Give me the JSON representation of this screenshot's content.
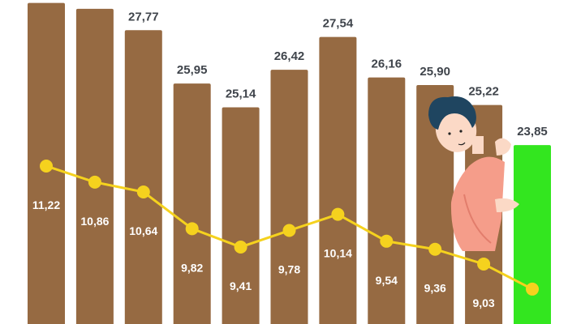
{
  "chart_data": {
    "type": "bar",
    "title": "",
    "xlabel": "",
    "ylabel": "",
    "grid": false,
    "categories": [
      "",
      "",
      "",
      "",
      "",
      "",
      "",
      "",
      "",
      "",
      ""
    ],
    "bars": {
      "values": [
        28.7,
        28.5,
        27.77,
        25.95,
        25.14,
        26.42,
        27.54,
        26.16,
        25.9,
        25.22,
        23.85
      ],
      "labels": [
        "",
        "",
        "27,77",
        "25,95",
        "25,14",
        "26,42",
        "27,54",
        "26,16",
        "25,90",
        "25,22",
        "23,85"
      ],
      "ylim": [
        17.75,
        28.8
      ],
      "colors": [
        "#966a42",
        "#966a42",
        "#966a42",
        "#966a42",
        "#966a42",
        "#966a42",
        "#966a42",
        "#966a42",
        "#966a42",
        "#966a42",
        "#33e61f"
      ]
    },
    "line": {
      "type": "line",
      "values": [
        11.22,
        10.86,
        10.64,
        9.82,
        9.41,
        9.78,
        10.14,
        9.54,
        9.36,
        9.03,
        8.47
      ],
      "labels": [
        "11,22",
        "10,86",
        "10,64",
        "9,82",
        "9,41",
        "9,78",
        "10,14",
        "9,54",
        "9,36",
        "9,03",
        ""
      ],
      "ylim": [
        7.69,
        14.93
      ],
      "color": "#f5d21e"
    }
  },
  "illustration": "person-peeking-icon"
}
